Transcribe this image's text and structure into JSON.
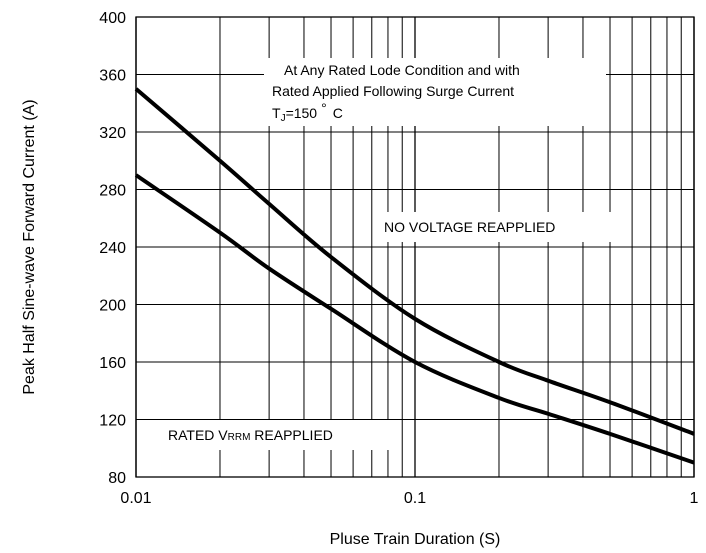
{
  "chart_data": {
    "type": "line",
    "title": "",
    "xlabel": "Pluse Train Duration (S)",
    "ylabel": "Peak Half Sine-wave Forward Current (A)",
    "x_scale": "log",
    "xlim": [
      0.01,
      1
    ],
    "ylim": [
      80,
      400
    ],
    "grid": true,
    "x_ticks": [
      0.01,
      0.1,
      1
    ],
    "x_tick_labels": [
      "0.01",
      "0.1",
      "1"
    ],
    "y_ticks": [
      80,
      120,
      160,
      200,
      240,
      280,
      320,
      360,
      400
    ],
    "y_tick_labels": [
      "80",
      "120",
      "160",
      "200",
      "240",
      "280",
      "320",
      "360",
      "400"
    ],
    "series": [
      {
        "label": "NO VOLTAGE REAPPLIED",
        "x": [
          0.01,
          0.02,
          0.03,
          0.05,
          0.1,
          0.2,
          0.3,
          0.5,
          1
        ],
        "y": [
          350,
          300,
          270,
          233,
          190,
          160,
          147,
          132,
          110
        ]
      },
      {
        "label": "RATED VRRM REAPPLIED",
        "x": [
          0.01,
          0.02,
          0.03,
          0.05,
          0.1,
          0.2,
          0.3,
          0.5,
          1
        ],
        "y": [
          290,
          250,
          225,
          197,
          160,
          135,
          124,
          110,
          90
        ]
      }
    ],
    "annotations": {
      "condition_line1": "At  Any Rated Lode Condition and with",
      "condition_line2": "Rated Applied Following Surge Current",
      "tj_main": "T",
      "tj_sub": "J",
      "tj_value": "=150",
      "tj_degree": "°",
      "tj_unit": "C",
      "no_voltage": "NO VOLTAGE REAPPLIED",
      "rated_prefix": "RATED V",
      "rated_sub": "RRM",
      "rated_suffix": " REAPPLIED"
    }
  }
}
